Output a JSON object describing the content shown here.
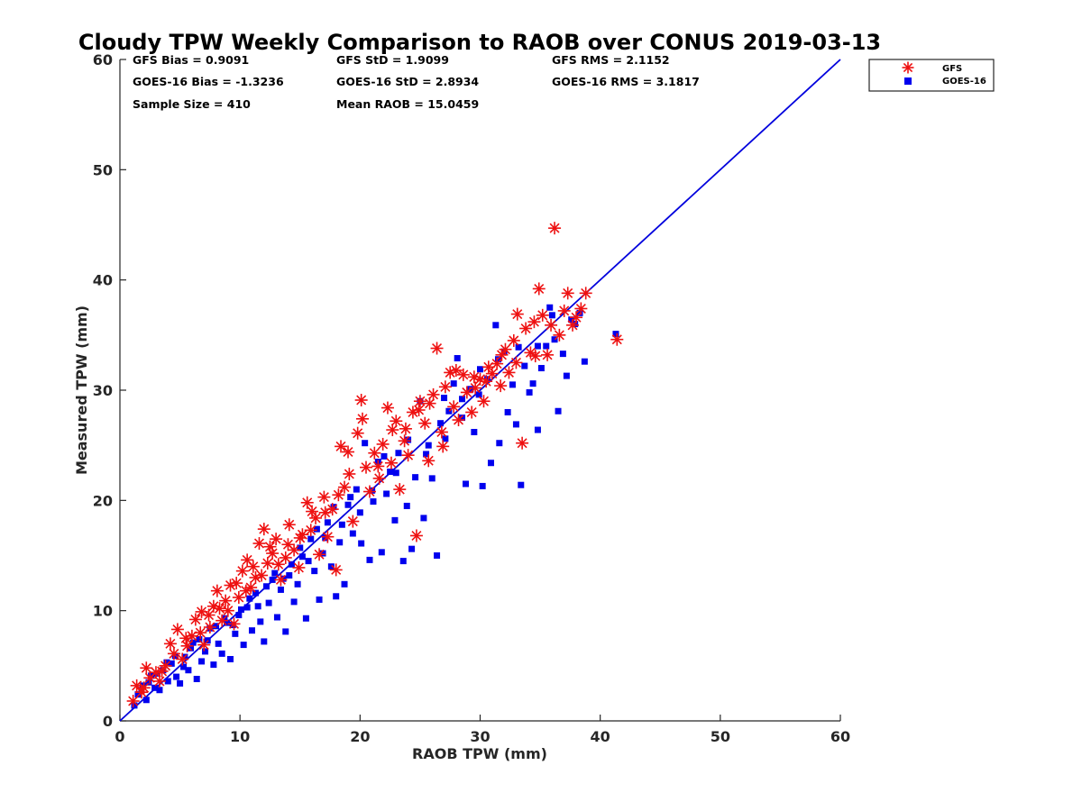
{
  "chart_data": {
    "type": "scatter",
    "title": "Cloudy TPW Weekly Comparison to RAOB over CONUS 2019-03-13",
    "xlabel": "RAOB TPW (mm)",
    "ylabel": "Measured TPW (mm)",
    "xlim": [
      0,
      60
    ],
    "ylim": [
      0,
      60
    ],
    "xticks": [
      "0",
      "10",
      "20",
      "30",
      "40",
      "50",
      "60"
    ],
    "yticks": [
      "0",
      "10",
      "20",
      "30",
      "40",
      "50",
      "60"
    ],
    "grid": false,
    "legend": {
      "placement": "top-right-outside",
      "entries": [
        "GFS",
        "GOES-16"
      ]
    },
    "reference_line": {
      "from": [
        0,
        0
      ],
      "to": [
        60,
        60
      ],
      "color": "#0000dd"
    },
    "stats": {
      "row1": [
        "GFS Bias = 0.9091",
        "GFS StD = 1.9099",
        "GFS RMS = 2.1152"
      ],
      "row2": [
        "GOES-16 Bias = -1.3236",
        "GOES-16 StD = 2.8934",
        "GOES-16 RMS = 3.1817"
      ],
      "row3": [
        "Sample Size = 410",
        "Mean RAOB = 15.0459"
      ]
    },
    "series": [
      {
        "name": "GFS",
        "marker": "asterisk",
        "color": "#ee1111",
        "points": [
          [
            1.1,
            1.8
          ],
          [
            1.4,
            3.2
          ],
          [
            1.8,
            2.6
          ],
          [
            2.2,
            4.8
          ],
          [
            2.5,
            3.9
          ],
          [
            3.0,
            4.4
          ],
          [
            3.3,
            3.6
          ],
          [
            3.8,
            5.0
          ],
          [
            4.2,
            7.0
          ],
          [
            4.5,
            6.1
          ],
          [
            4.8,
            8.3
          ],
          [
            5.2,
            5.6
          ],
          [
            5.6,
            6.8
          ],
          [
            6.0,
            7.7
          ],
          [
            6.3,
            9.2
          ],
          [
            6.7,
            8.0
          ],
          [
            7.0,
            6.9
          ],
          [
            7.4,
            9.6
          ],
          [
            7.8,
            10.4
          ],
          [
            8.1,
            11.8
          ],
          [
            8.5,
            9.1
          ],
          [
            8.8,
            10.9
          ],
          [
            9.2,
            12.3
          ],
          [
            9.5,
            8.8
          ],
          [
            9.9,
            11.2
          ],
          [
            10.2,
            13.6
          ],
          [
            10.6,
            14.6
          ],
          [
            10.9,
            12.1
          ],
          [
            11.3,
            13.0
          ],
          [
            11.6,
            16.1
          ],
          [
            12.0,
            17.4
          ],
          [
            12.3,
            14.3
          ],
          [
            12.7,
            15.2
          ],
          [
            13.0,
            16.5
          ],
          [
            13.4,
            12.8
          ],
          [
            13.8,
            14.8
          ],
          [
            14.1,
            17.8
          ],
          [
            14.5,
            15.5
          ],
          [
            14.9,
            13.9
          ],
          [
            15.2,
            16.9
          ],
          [
            15.6,
            19.8
          ],
          [
            15.9,
            17.3
          ],
          [
            16.3,
            18.4
          ],
          [
            16.6,
            15.1
          ],
          [
            17.0,
            20.3
          ],
          [
            17.3,
            16.7
          ],
          [
            17.7,
            19.2
          ],
          [
            18.0,
            13.7
          ],
          [
            18.4,
            24.9
          ],
          [
            18.7,
            21.2
          ],
          [
            19.1,
            22.4
          ],
          [
            19.4,
            18.1
          ],
          [
            19.8,
            26.1
          ],
          [
            20.1,
            29.1
          ],
          [
            20.5,
            23.0
          ],
          [
            20.8,
            20.8
          ],
          [
            21.2,
            24.3
          ],
          [
            21.6,
            22.0
          ],
          [
            21.9,
            25.1
          ],
          [
            22.3,
            28.4
          ],
          [
            22.6,
            23.4
          ],
          [
            23.0,
            27.2
          ],
          [
            23.3,
            21.0
          ],
          [
            23.7,
            25.4
          ],
          [
            24.0,
            24.1
          ],
          [
            24.4,
            28.0
          ],
          [
            24.7,
            16.8
          ],
          [
            25.0,
            29.0
          ],
          [
            25.4,
            27.0
          ],
          [
            25.7,
            23.6
          ],
          [
            26.1,
            29.6
          ],
          [
            26.4,
            33.8
          ],
          [
            26.8,
            26.2
          ],
          [
            27.1,
            30.3
          ],
          [
            27.5,
            31.6
          ],
          [
            27.8,
            28.5
          ],
          [
            28.2,
            27.3
          ],
          [
            28.6,
            31.4
          ],
          [
            28.9,
            29.8
          ],
          [
            29.3,
            28.0
          ],
          [
            29.6,
            30.2
          ],
          [
            30.0,
            31.0
          ],
          [
            30.3,
            29.0
          ],
          [
            30.7,
            32.1
          ],
          [
            31.0,
            31.5
          ],
          [
            31.4,
            32.4
          ],
          [
            31.7,
            30.4
          ],
          [
            32.1,
            33.7
          ],
          [
            32.4,
            31.6
          ],
          [
            32.8,
            34.5
          ],
          [
            33.1,
            36.9
          ],
          [
            33.5,
            25.2
          ],
          [
            33.8,
            35.6
          ],
          [
            34.2,
            33.4
          ],
          [
            34.5,
            36.2
          ],
          [
            34.9,
            39.2
          ],
          [
            35.2,
            36.8
          ],
          [
            35.6,
            33.2
          ],
          [
            35.9,
            35.9
          ],
          [
            36.2,
            44.7
          ],
          [
            36.6,
            35.0
          ],
          [
            37.0,
            37.2
          ],
          [
            37.3,
            38.8
          ],
          [
            37.7,
            35.9
          ],
          [
            38.0,
            36.6
          ],
          [
            38.4,
            37.4
          ],
          [
            38.8,
            38.8
          ],
          [
            41.4,
            34.6
          ],
          [
            2.0,
            3.0
          ],
          [
            3.5,
            4.5
          ],
          [
            5.5,
            7.5
          ],
          [
            6.8,
            9.9
          ],
          [
            7.5,
            8.5
          ],
          [
            8.3,
            10.2
          ],
          [
            9.0,
            10.0
          ],
          [
            9.7,
            12.5
          ],
          [
            10.5,
            11.8
          ],
          [
            11.1,
            14.0
          ],
          [
            11.8,
            13.2
          ],
          [
            12.5,
            15.8
          ],
          [
            13.2,
            14.2
          ],
          [
            14.0,
            16.0
          ],
          [
            15.0,
            16.6
          ],
          [
            16.0,
            19.0
          ],
          [
            17.1,
            18.9
          ],
          [
            18.2,
            20.5
          ],
          [
            19.0,
            24.4
          ],
          [
            20.2,
            27.4
          ],
          [
            21.5,
            23.1
          ],
          [
            22.7,
            26.4
          ],
          [
            23.8,
            26.5
          ],
          [
            24.9,
            28.2
          ],
          [
            25.8,
            28.8
          ],
          [
            26.9,
            24.9
          ],
          [
            28.0,
            31.8
          ],
          [
            29.5,
            31.2
          ],
          [
            30.5,
            30.8
          ],
          [
            31.8,
            33.2
          ],
          [
            33.0,
            32.5
          ],
          [
            34.6,
            33.1
          ]
        ]
      },
      {
        "name": "GOES-16",
        "marker": "square",
        "color": "#0000ee",
        "points": [
          [
            1.2,
            1.4
          ],
          [
            1.5,
            2.4
          ],
          [
            1.9,
            3.2
          ],
          [
            2.2,
            1.9
          ],
          [
            2.6,
            4.1
          ],
          [
            2.9,
            3.0
          ],
          [
            3.3,
            2.8
          ],
          [
            3.6,
            4.6
          ],
          [
            4.0,
            3.6
          ],
          [
            4.3,
            5.2
          ],
          [
            4.7,
            4.0
          ],
          [
            5.0,
            3.4
          ],
          [
            5.4,
            5.8
          ],
          [
            5.7,
            4.6
          ],
          [
            6.1,
            7.1
          ],
          [
            6.4,
            3.8
          ],
          [
            6.8,
            5.4
          ],
          [
            7.1,
            6.3
          ],
          [
            7.5,
            8.4
          ],
          [
            7.8,
            5.1
          ],
          [
            8.2,
            7.0
          ],
          [
            8.5,
            6.1
          ],
          [
            8.9,
            8.9
          ],
          [
            9.2,
            5.6
          ],
          [
            9.6,
            7.9
          ],
          [
            9.9,
            9.6
          ],
          [
            10.3,
            6.9
          ],
          [
            10.6,
            10.3
          ],
          [
            11.0,
            8.2
          ],
          [
            11.3,
            11.6
          ],
          [
            11.7,
            9.0
          ],
          [
            12.0,
            7.2
          ],
          [
            12.4,
            10.7
          ],
          [
            12.7,
            12.8
          ],
          [
            13.1,
            9.4
          ],
          [
            13.4,
            11.9
          ],
          [
            13.8,
            8.1
          ],
          [
            14.1,
            13.2
          ],
          [
            14.5,
            10.8
          ],
          [
            14.8,
            12.4
          ],
          [
            15.2,
            14.9
          ],
          [
            15.5,
            9.3
          ],
          [
            15.9,
            16.5
          ],
          [
            16.2,
            13.6
          ],
          [
            16.6,
            11.0
          ],
          [
            16.9,
            15.2
          ],
          [
            17.3,
            18.0
          ],
          [
            17.6,
            14.0
          ],
          [
            18.0,
            11.3
          ],
          [
            18.3,
            16.2
          ],
          [
            18.7,
            12.4
          ],
          [
            19.0,
            19.6
          ],
          [
            19.4,
            17.0
          ],
          [
            19.7,
            21.0
          ],
          [
            20.1,
            16.1
          ],
          [
            20.4,
            25.2
          ],
          [
            20.8,
            14.6
          ],
          [
            21.1,
            19.9
          ],
          [
            21.5,
            23.5
          ],
          [
            21.8,
            15.3
          ],
          [
            22.2,
            20.6
          ],
          [
            22.5,
            22.6
          ],
          [
            22.9,
            18.2
          ],
          [
            23.2,
            24.3
          ],
          [
            23.6,
            14.5
          ],
          [
            23.9,
            19.5
          ],
          [
            24.3,
            15.6
          ],
          [
            24.6,
            22.1
          ],
          [
            25.0,
            29.0
          ],
          [
            25.3,
            18.4
          ],
          [
            25.7,
            25.0
          ],
          [
            26.0,
            22.0
          ],
          [
            26.4,
            15.0
          ],
          [
            26.7,
            27.0
          ],
          [
            27.1,
            25.6
          ],
          [
            27.4,
            28.1
          ],
          [
            27.8,
            30.6
          ],
          [
            28.1,
            32.9
          ],
          [
            28.5,
            27.5
          ],
          [
            28.8,
            21.5
          ],
          [
            29.2,
            30.1
          ],
          [
            29.5,
            26.2
          ],
          [
            29.9,
            29.6
          ],
          [
            30.2,
            21.3
          ],
          [
            30.6,
            31.0
          ],
          [
            30.9,
            23.4
          ],
          [
            31.3,
            35.9
          ],
          [
            31.6,
            25.2
          ],
          [
            32.0,
            33.5
          ],
          [
            32.3,
            28.0
          ],
          [
            32.7,
            30.5
          ],
          [
            33.0,
            26.9
          ],
          [
            33.4,
            21.4
          ],
          [
            33.7,
            32.2
          ],
          [
            34.1,
            29.8
          ],
          [
            34.4,
            30.6
          ],
          [
            34.8,
            26.4
          ],
          [
            35.1,
            32.0
          ],
          [
            35.5,
            34.0
          ],
          [
            35.8,
            37.5
          ],
          [
            36.2,
            34.6
          ],
          [
            36.5,
            28.1
          ],
          [
            36.9,
            33.3
          ],
          [
            37.2,
            31.3
          ],
          [
            37.6,
            36.4
          ],
          [
            37.9,
            36.0
          ],
          [
            38.3,
            37.0
          ],
          [
            38.7,
            32.6
          ],
          [
            41.3,
            35.1
          ],
          [
            1.8,
            2.8
          ],
          [
            2.4,
            3.5
          ],
          [
            3.1,
            4.3
          ],
          [
            3.9,
            5.3
          ],
          [
            4.6,
            5.9
          ],
          [
            5.3,
            4.9
          ],
          [
            5.9,
            6.6
          ],
          [
            6.6,
            7.4
          ],
          [
            7.3,
            7.3
          ],
          [
            8.0,
            8.6
          ],
          [
            8.7,
            9.3
          ],
          [
            9.4,
            8.7
          ],
          [
            10.1,
            10.1
          ],
          [
            10.8,
            11.1
          ],
          [
            11.5,
            10.4
          ],
          [
            12.2,
            12.2
          ],
          [
            12.9,
            13.4
          ],
          [
            13.6,
            12.9
          ],
          [
            14.3,
            14.2
          ],
          [
            15.0,
            15.7
          ],
          [
            15.7,
            14.5
          ],
          [
            16.4,
            17.4
          ],
          [
            17.1,
            16.6
          ],
          [
            17.8,
            19.4
          ],
          [
            18.5,
            17.8
          ],
          [
            19.2,
            20.3
          ],
          [
            20.0,
            18.9
          ],
          [
            21.0,
            20.9
          ],
          [
            22.0,
            24.0
          ],
          [
            23.0,
            22.5
          ],
          [
            24.0,
            25.5
          ],
          [
            25.5,
            24.2
          ],
          [
            27.0,
            29.3
          ],
          [
            28.5,
            29.2
          ],
          [
            30.0,
            31.9
          ],
          [
            31.5,
            32.8
          ],
          [
            33.2,
            33.9
          ],
          [
            34.8,
            34.0
          ],
          [
            36.0,
            36.8
          ]
        ]
      }
    ]
  }
}
